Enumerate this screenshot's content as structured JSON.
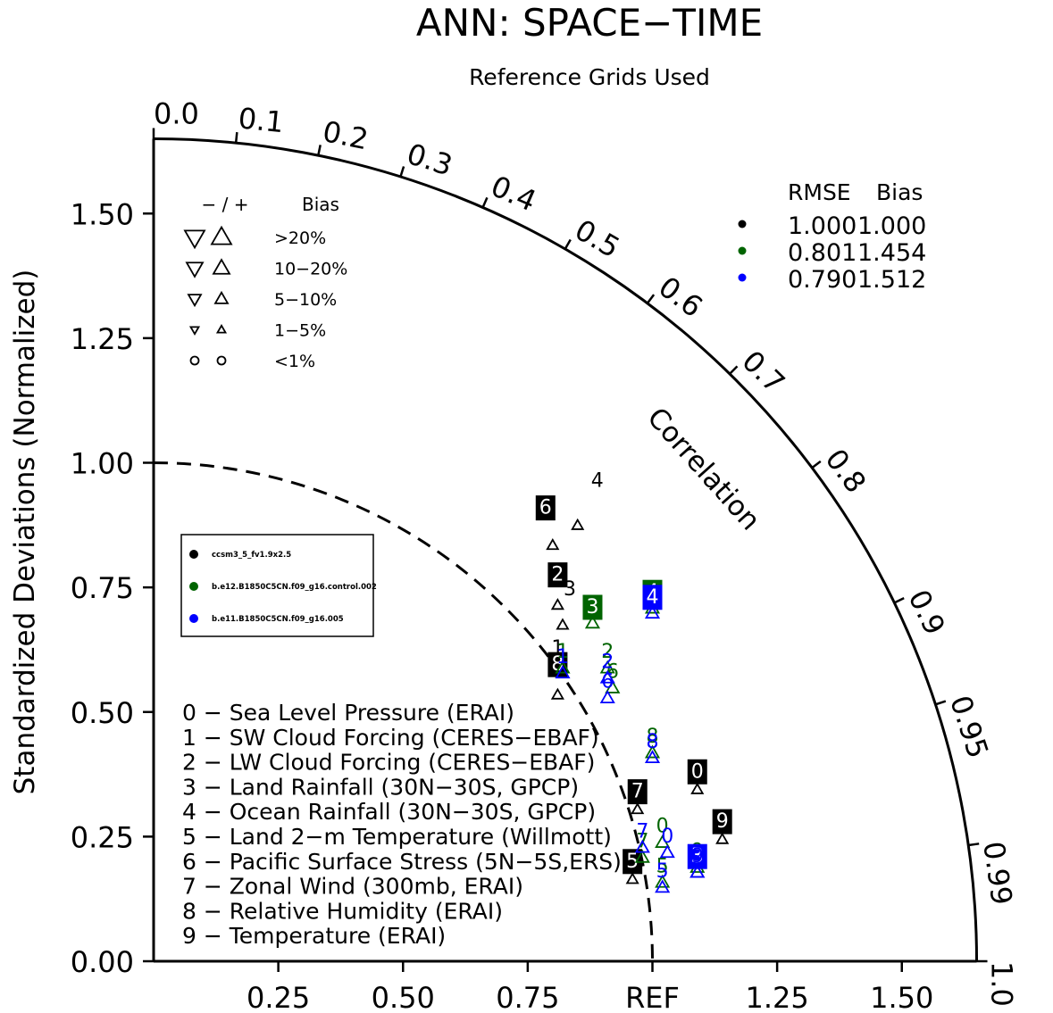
{
  "chart_data": {
    "type": "scatter",
    "subtype": "taylor-diagram",
    "title": "ANN: SPACE−TIME",
    "subtitle": "Reference Grids Used",
    "ylabel": "Standardized Deviations (Normalized)",
    "xlabel": "",
    "arc_label": "Correlation",
    "ref_label": "REF",
    "range": [
      0,
      1.65
    ],
    "y_ticks": [
      "0.00",
      "0.25",
      "0.50",
      "0.75",
      "1.00",
      "1.25",
      "1.50"
    ],
    "x_ticks": [
      "0.25",
      "0.50",
      "0.75",
      "REF",
      "1.25",
      "1.50"
    ],
    "correlation_ticks": [
      {
        "r": 0.0,
        "label": "0.0"
      },
      {
        "r": 0.1,
        "label": "0.1"
      },
      {
        "r": 0.2,
        "label": "0.2"
      },
      {
        "r": 0.3,
        "label": "0.3"
      },
      {
        "r": 0.4,
        "label": "0.4"
      },
      {
        "r": 0.5,
        "label": "0.5"
      },
      {
        "r": 0.6,
        "label": "0.6"
      },
      {
        "r": 0.7,
        "label": "0.7"
      },
      {
        "r": 0.8,
        "label": "0.8"
      },
      {
        "r": 0.9,
        "label": "0.9"
      },
      {
        "r": 0.95,
        "label": "0.95"
      },
      {
        "r": 0.99,
        "label": "0.99"
      },
      {
        "r": 1.0,
        "label": "1.0"
      }
    ],
    "bias_legend": {
      "header_signs": "− / +",
      "header_bias": "Bias",
      "rows": [
        {
          "label": ">20%",
          "size": 22,
          "shape": "triangle"
        },
        {
          "label": "10−20%",
          "size": 18,
          "shape": "triangle"
        },
        {
          "label": "5−10%",
          "size": 14,
          "shape": "triangle"
        },
        {
          "label": "1−5%",
          "size": 9,
          "shape": "triangle"
        },
        {
          "label": "<1%",
          "size": 11,
          "shape": "circle"
        }
      ]
    },
    "rmse_table": {
      "header_rmse": "RMSE",
      "header_bias": "Bias",
      "rows": [
        {
          "color": "#000000",
          "rmse": "1.000",
          "bias": "1.000"
        },
        {
          "color": "#006400",
          "rmse": "0.801",
          "bias": "1.454"
        },
        {
          "color": "#0000ff",
          "rmse": "0.790",
          "bias": "1.512"
        }
      ]
    },
    "series": [
      {
        "name": "ccsm3_5_fv1.9x2.5",
        "color": "#000000",
        "points": [
          {
            "id": "0",
            "x": 1.09,
            "y": 0.38
          },
          {
            "id": "1",
            "x": 0.81,
            "y": 0.62
          },
          {
            "id": "2",
            "x": 0.81,
            "y": 0.75
          },
          {
            "id": "3",
            "x": 0.82,
            "y": 0.71
          },
          {
            "id": "4",
            "x": 0.85,
            "y": 0.91
          },
          {
            "id": "5",
            "x": 0.96,
            "y": 0.2
          },
          {
            "id": "6",
            "x": 0.8,
            "y": 0.87
          },
          {
            "id": "7",
            "x": 0.97,
            "y": 0.34
          },
          {
            "id": "8",
            "x": 0.81,
            "y": 0.57
          },
          {
            "id": "9",
            "x": 1.14,
            "y": 0.28
          }
        ]
      },
      {
        "name": "b.e12.B1850C5CN.f09_g16.control.002",
        "color": "#006400",
        "points": [
          {
            "id": "0",
            "x": 1.02,
            "y": 0.27
          },
          {
            "id": "1",
            "x": 0.82,
            "y": 0.62
          },
          {
            "id": "2",
            "x": 0.91,
            "y": 0.62
          },
          {
            "id": "3",
            "x": 0.88,
            "y": 0.71
          },
          {
            "id": "4",
            "x": 1.0,
            "y": 0.74
          },
          {
            "id": "5",
            "x": 1.02,
            "y": 0.19
          },
          {
            "id": "6",
            "x": 0.92,
            "y": 0.58
          },
          {
            "id": "7",
            "x": 0.98,
            "y": 0.24
          },
          {
            "id": "8",
            "x": 1.0,
            "y": 0.45
          },
          {
            "id": "9",
            "x": 1.09,
            "y": 0.22
          }
        ]
      },
      {
        "name": "b.e11.B1850C5CN.f09_g16.005",
        "color": "#0000ff",
        "points": [
          {
            "id": "0",
            "x": 1.03,
            "y": 0.25
          },
          {
            "id": "1",
            "x": 0.82,
            "y": 0.61
          },
          {
            "id": "2",
            "x": 0.91,
            "y": 0.6
          },
          {
            "id": "3",
            "x": 1.09,
            "y": 0.21
          },
          {
            "id": "4",
            "x": 1.0,
            "y": 0.73
          },
          {
            "id": "5",
            "x": 1.02,
            "y": 0.18
          },
          {
            "id": "6",
            "x": 0.91,
            "y": 0.56
          },
          {
            "id": "7",
            "x": 0.98,
            "y": 0.26
          },
          {
            "id": "8",
            "x": 1.0,
            "y": 0.44
          },
          {
            "id": "9",
            "x": 1.09,
            "y": 0.21
          }
        ]
      }
    ],
    "variables": [
      {
        "id": "0",
        "label": "0 − Sea Level Pressure (ERAI)"
      },
      {
        "id": "1",
        "label": "1 − SW Cloud Forcing (CERES−EBAF)"
      },
      {
        "id": "2",
        "label": "2 − LW Cloud Forcing (CERES−EBAF)"
      },
      {
        "id": "3",
        "label": "3 − Land Rainfall (30N−30S, GPCP)"
      },
      {
        "id": "4",
        "label": "4 − Ocean Rainfall (30N−30S, GPCP)"
      },
      {
        "id": "5",
        "label": "5 − Land 2−m Temperature (Willmott)"
      },
      {
        "id": "6",
        "label": "6 − Pacific Surface Stress (5N−5S,ERS)"
      },
      {
        "id": "7",
        "label": "7 − Zonal Wind (300mb, ERAI)"
      },
      {
        "id": "8",
        "label": "8 − Relative Humidity (ERAI)"
      },
      {
        "id": "9",
        "label": "9 − Temperature (ERAI)"
      }
    ]
  }
}
